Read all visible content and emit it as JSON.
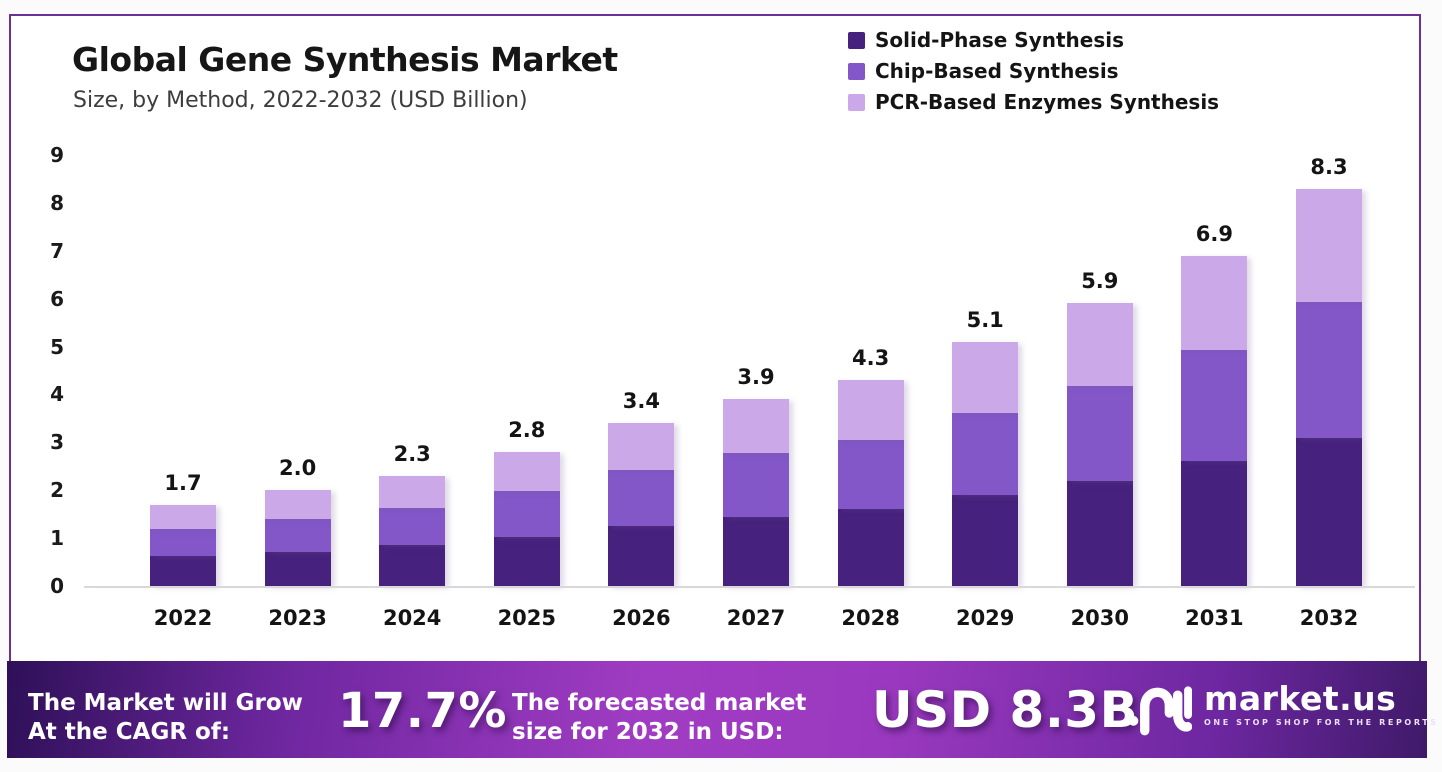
{
  "title": "Global Gene Synthesis Market",
  "subtitle": "Size, by Method, 2022-2032 (USD Billion)",
  "legend": [
    {
      "label": "Solid-Phase Synthesis",
      "color": "#46217d"
    },
    {
      "label": "Chip-Based Synthesis",
      "color": "#8357c8"
    },
    {
      "label": "PCR-Based Enzymes Synthesis",
      "color": "#cba9e8"
    }
  ],
  "chart_data": {
    "type": "bar",
    "stacked": true,
    "title": "Global Gene Synthesis Market",
    "subtitle": "Size, by Method, 2022-2032 (USD Billion)",
    "xlabel": "",
    "ylabel": "USD Billion",
    "ylim": [
      0,
      9
    ],
    "yticks": [
      0,
      1,
      2,
      3,
      4,
      5,
      6,
      7,
      8,
      9
    ],
    "grid": false,
    "legend_position": "top-right",
    "categories": [
      "2022",
      "2023",
      "2024",
      "2025",
      "2026",
      "2027",
      "2028",
      "2029",
      "2030",
      "2031",
      "2032"
    ],
    "series": [
      {
        "name": "Solid-Phase Synthesis",
        "color": "#46217d",
        "values": [
          0.63,
          0.72,
          0.85,
          1.03,
          1.26,
          1.45,
          1.6,
          1.9,
          2.2,
          2.6,
          3.1
        ]
      },
      {
        "name": "Chip-Based Synthesis",
        "color": "#8357c8",
        "values": [
          0.57,
          0.68,
          0.78,
          0.95,
          1.16,
          1.32,
          1.45,
          1.72,
          1.97,
          2.33,
          2.84
        ]
      },
      {
        "name": "PCR-Based Enzymes Synthesis",
        "color": "#cba9e8",
        "values": [
          0.5,
          0.6,
          0.67,
          0.82,
          0.98,
          1.13,
          1.25,
          1.48,
          1.73,
          1.97,
          2.36
        ]
      }
    ],
    "totals": [
      1.7,
      2.0,
      2.3,
      2.8,
      3.4,
      3.9,
      4.3,
      5.1,
      5.9,
      6.9,
      8.3
    ],
    "total_labels": [
      "1.7",
      "2.0",
      "2.3",
      "2.8",
      "3.4",
      "3.9",
      "4.3",
      "5.1",
      "5.9",
      "6.9",
      "8.3"
    ]
  },
  "footer": {
    "cagr_line1": "The Market will Grow",
    "cagr_line2": "At the CAGR of:",
    "cagr_value": "17.7%",
    "forecast_line1": "The forecasted market",
    "forecast_line2": "size for 2032 in USD:",
    "forecast_value": "USD 8.3B",
    "logo_name": "market.us",
    "logo_tagline": "ONE STOP SHOP FOR THE REPORTS"
  }
}
